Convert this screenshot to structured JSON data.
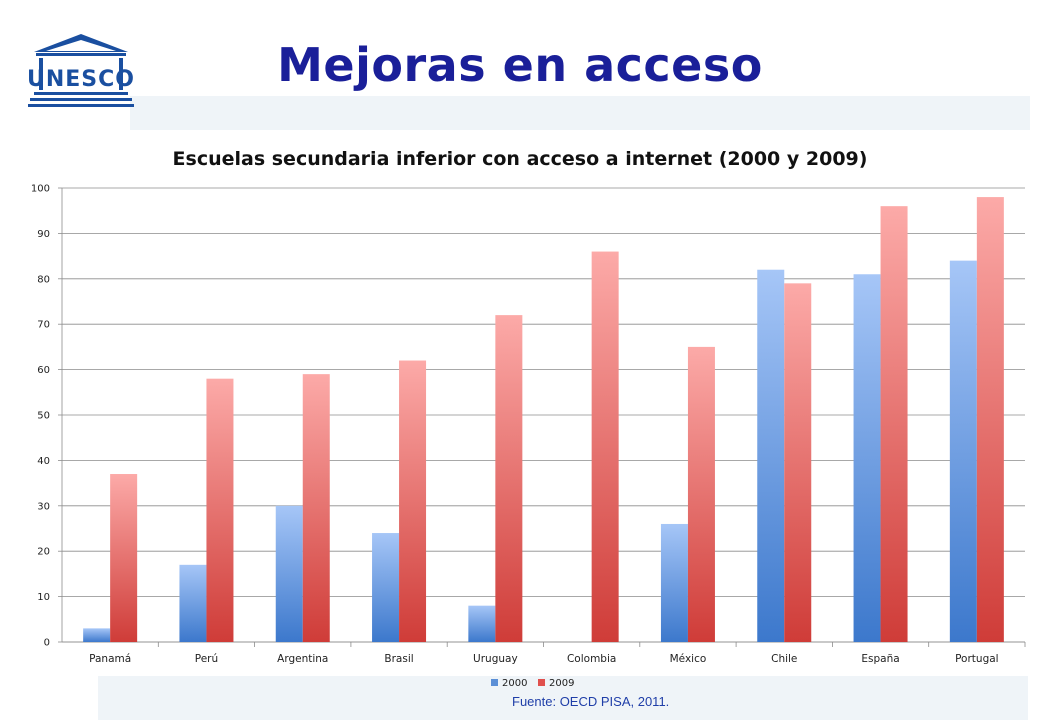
{
  "header": {
    "title": "Mejoras en acceso",
    "logo_text": "UNESCO"
  },
  "chart_data": {
    "type": "bar",
    "title": "Escuelas secundaria inferior con acceso a internet (2000 y 2009)",
    "xlabel": "",
    "ylabel": "",
    "categories": [
      "Panamá",
      "Perú",
      "Argentina",
      "Brasil",
      "Uruguay",
      "Colombia",
      "México",
      "Chile",
      "España",
      "Portugal"
    ],
    "series": [
      {
        "name": "2000",
        "color": "#4f86cf",
        "values": [
          3,
          17,
          30,
          24,
          8,
          null,
          26,
          82,
          81,
          84
        ]
      },
      {
        "name": "2009",
        "color": "#d9504c",
        "values": [
          37,
          58,
          59,
          62,
          72,
          86,
          65,
          79,
          96,
          98
        ]
      }
    ],
    "ylim": [
      0,
      100
    ],
    "yticks": [
      0,
      10,
      20,
      30,
      40,
      50,
      60,
      70,
      80,
      90,
      100
    ],
    "grid": true,
    "legend": "bottom"
  },
  "footer": {
    "source": "Fuente: OECD PISA, 2011."
  }
}
